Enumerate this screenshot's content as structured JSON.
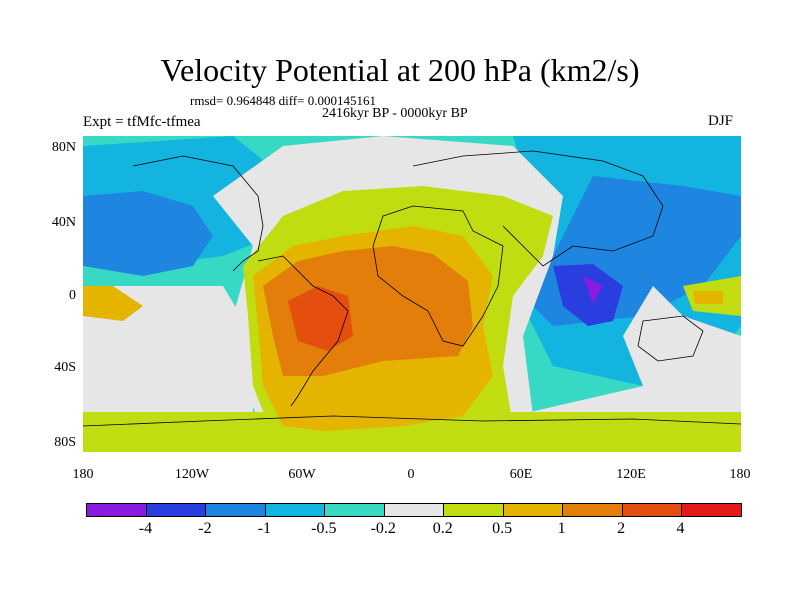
{
  "title": "Velocity Potential at 200 hPa (km2/s)",
  "stats": "rmsd= 0.964848 diff= 0.000145161",
  "period": "2416kyr BP - 0000kyr BP",
  "experiment": "Expt = tfMfc-tfmea",
  "season": "DJF",
  "axes": {
    "lat_labels": [
      "80N",
      "40N",
      "0",
      "40S",
      "80S"
    ],
    "lon_labels": [
      "180",
      "120W",
      "60W",
      "0",
      "60E",
      "120E",
      "180"
    ]
  },
  "colorbar": {
    "colors": [
      "#8a1ce0",
      "#2a3ee0",
      "#1e86e0",
      "#14b4e0",
      "#38d9c4",
      "#e6e6e6",
      "#c2dc12",
      "#e4b400",
      "#e47e0a",
      "#e44e0e",
      "#e41a1a"
    ],
    "labels": [
      "-4",
      "-2",
      "-1",
      "-0.5",
      "-0.2",
      "0.2",
      "0.5",
      "1",
      "2",
      "4"
    ]
  }
}
